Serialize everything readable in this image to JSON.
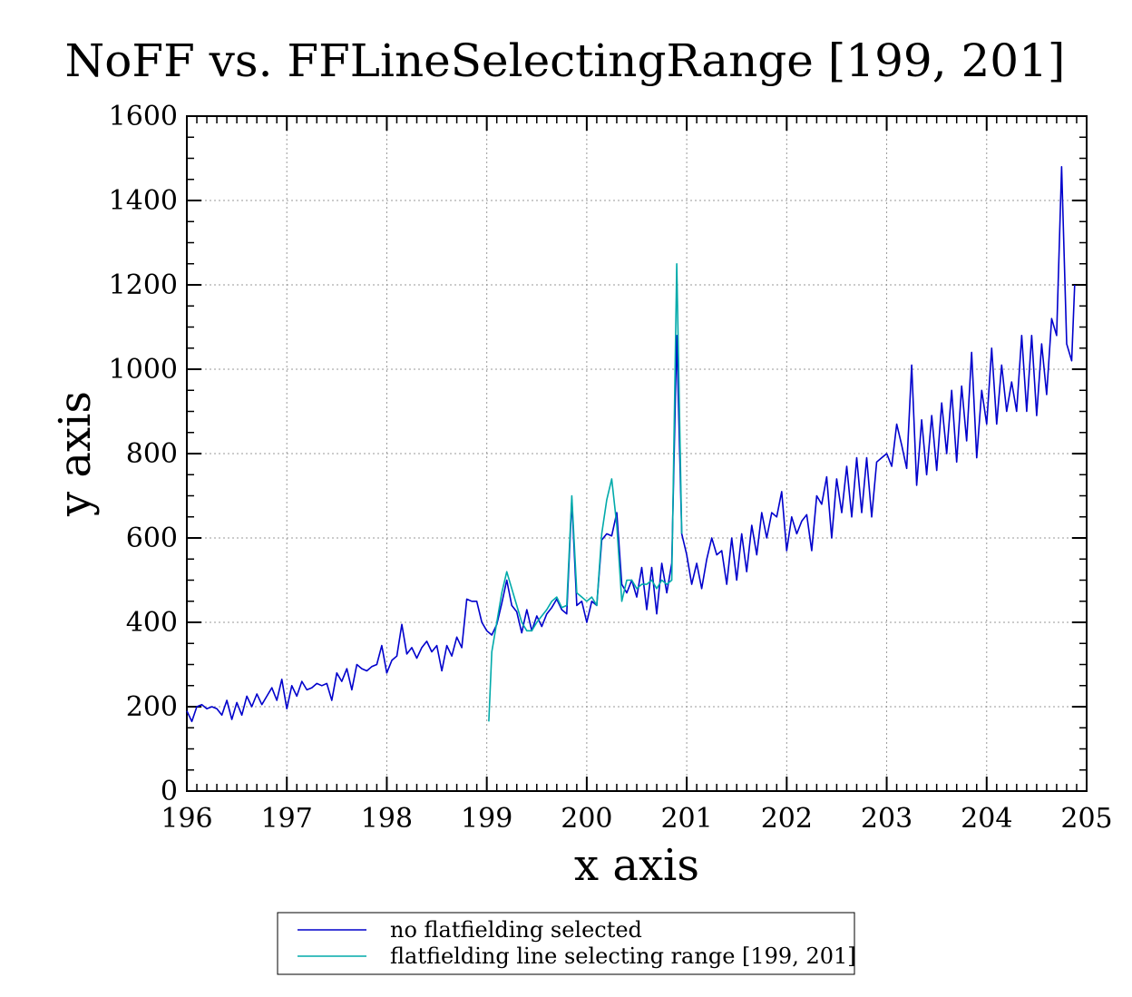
{
  "chart_data": {
    "type": "line",
    "title": "NoFF vs. FFLineSelectingRange [199, 201]",
    "xlabel": "x axis",
    "ylabel": "y axis",
    "xlim": [
      196,
      205
    ],
    "ylim": [
      0,
      1600
    ],
    "xticks": [
      196,
      197,
      198,
      199,
      200,
      201,
      202,
      203,
      204,
      205
    ],
    "yticks": [
      0,
      200,
      400,
      600,
      800,
      1000,
      1200,
      1400,
      1600
    ],
    "grid": true,
    "legend_position": "bottom-center",
    "series": [
      {
        "name": "no flatfielding selected",
        "color": "#0000cc",
        "points": [
          [
            196.0,
            190
          ],
          [
            196.05,
            165
          ],
          [
            196.1,
            200
          ],
          [
            196.15,
            205
          ],
          [
            196.2,
            195
          ],
          [
            196.25,
            200
          ],
          [
            196.3,
            195
          ],
          [
            196.35,
            180
          ],
          [
            196.4,
            215
          ],
          [
            196.45,
            170
          ],
          [
            196.5,
            210
          ],
          [
            196.55,
            180
          ],
          [
            196.6,
            225
          ],
          [
            196.65,
            200
          ],
          [
            196.7,
            230
          ],
          [
            196.75,
            205
          ],
          [
            196.8,
            225
          ],
          [
            196.85,
            245
          ],
          [
            196.9,
            215
          ],
          [
            196.95,
            265
          ],
          [
            197.0,
            195
          ],
          [
            197.05,
            250
          ],
          [
            197.1,
            225
          ],
          [
            197.15,
            260
          ],
          [
            197.2,
            240
          ],
          [
            197.25,
            245
          ],
          [
            197.3,
            255
          ],
          [
            197.35,
            250
          ],
          [
            197.4,
            255
          ],
          [
            197.45,
            215
          ],
          [
            197.5,
            280
          ],
          [
            197.55,
            260
          ],
          [
            197.6,
            290
          ],
          [
            197.65,
            240
          ],
          [
            197.7,
            300
          ],
          [
            197.75,
            290
          ],
          [
            197.8,
            285
          ],
          [
            197.85,
            295
          ],
          [
            197.9,
            300
          ],
          [
            197.95,
            345
          ],
          [
            198.0,
            280
          ],
          [
            198.05,
            310
          ],
          [
            198.1,
            320
          ],
          [
            198.15,
            395
          ],
          [
            198.2,
            325
          ],
          [
            198.25,
            340
          ],
          [
            198.3,
            315
          ],
          [
            198.35,
            340
          ],
          [
            198.4,
            355
          ],
          [
            198.45,
            330
          ],
          [
            198.5,
            345
          ],
          [
            198.55,
            285
          ],
          [
            198.6,
            345
          ],
          [
            198.65,
            320
          ],
          [
            198.7,
            365
          ],
          [
            198.75,
            340
          ],
          [
            198.8,
            455
          ],
          [
            198.85,
            450
          ],
          [
            198.9,
            450
          ],
          [
            198.95,
            400
          ],
          [
            199.0,
            380
          ],
          [
            199.05,
            370
          ],
          [
            199.1,
            395
          ],
          [
            199.15,
            445
          ],
          [
            199.2,
            500
          ],
          [
            199.25,
            440
          ],
          [
            199.3,
            425
          ],
          [
            199.35,
            375
          ],
          [
            199.4,
            430
          ],
          [
            199.45,
            380
          ],
          [
            199.5,
            415
          ],
          [
            199.55,
            390
          ],
          [
            199.6,
            420
          ],
          [
            199.65,
            435
          ],
          [
            199.7,
            455
          ],
          [
            199.75,
            430
          ],
          [
            199.8,
            420
          ],
          [
            199.85,
            690
          ],
          [
            199.9,
            440
          ],
          [
            199.95,
            450
          ],
          [
            200.0,
            400
          ],
          [
            200.05,
            450
          ],
          [
            200.1,
            440
          ],
          [
            200.15,
            595
          ],
          [
            200.2,
            610
          ],
          [
            200.25,
            605
          ],
          [
            200.3,
            660
          ],
          [
            200.35,
            490
          ],
          [
            200.4,
            470
          ],
          [
            200.45,
            500
          ],
          [
            200.5,
            460
          ],
          [
            200.55,
            530
          ],
          [
            200.6,
            430
          ],
          [
            200.65,
            530
          ],
          [
            200.7,
            420
          ],
          [
            200.75,
            540
          ],
          [
            200.8,
            470
          ],
          [
            200.85,
            540
          ],
          [
            200.9,
            1080
          ],
          [
            200.95,
            610
          ],
          [
            201.0,
            560
          ],
          [
            201.05,
            490
          ],
          [
            201.1,
            540
          ],
          [
            201.15,
            480
          ],
          [
            201.2,
            550
          ],
          [
            201.25,
            600
          ],
          [
            201.3,
            560
          ],
          [
            201.35,
            570
          ],
          [
            201.4,
            490
          ],
          [
            201.45,
            600
          ],
          [
            201.5,
            500
          ],
          [
            201.55,
            610
          ],
          [
            201.6,
            520
          ],
          [
            201.65,
            630
          ],
          [
            201.7,
            560
          ],
          [
            201.75,
            660
          ],
          [
            201.8,
            600
          ],
          [
            201.85,
            660
          ],
          [
            201.9,
            650
          ],
          [
            201.95,
            710
          ],
          [
            202.0,
            570
          ],
          [
            202.05,
            650
          ],
          [
            202.1,
            610
          ],
          [
            202.15,
            640
          ],
          [
            202.2,
            655
          ],
          [
            202.25,
            570
          ],
          [
            202.3,
            700
          ],
          [
            202.35,
            680
          ],
          [
            202.4,
            745
          ],
          [
            202.45,
            600
          ],
          [
            202.5,
            740
          ],
          [
            202.55,
            660
          ],
          [
            202.6,
            770
          ],
          [
            202.65,
            650
          ],
          [
            202.7,
            790
          ],
          [
            202.75,
            660
          ],
          [
            202.8,
            790
          ],
          [
            202.85,
            650
          ],
          [
            202.9,
            780
          ],
          [
            202.95,
            790
          ],
          [
            203.0,
            800
          ],
          [
            203.05,
            770
          ],
          [
            203.1,
            870
          ],
          [
            203.15,
            820
          ],
          [
            203.2,
            765
          ],
          [
            203.25,
            1010
          ],
          [
            203.3,
            725
          ],
          [
            203.35,
            880
          ],
          [
            203.4,
            750
          ],
          [
            203.45,
            890
          ],
          [
            203.5,
            760
          ],
          [
            203.55,
            920
          ],
          [
            203.6,
            800
          ],
          [
            203.65,
            950
          ],
          [
            203.7,
            780
          ],
          [
            203.75,
            960
          ],
          [
            203.8,
            830
          ],
          [
            203.85,
            1040
          ],
          [
            203.9,
            790
          ],
          [
            203.95,
            950
          ],
          [
            204.0,
            870
          ],
          [
            204.05,
            1050
          ],
          [
            204.1,
            870
          ],
          [
            204.15,
            1010
          ],
          [
            204.2,
            900
          ],
          [
            204.25,
            970
          ],
          [
            204.3,
            900
          ],
          [
            204.35,
            1080
          ],
          [
            204.4,
            900
          ],
          [
            204.45,
            1080
          ],
          [
            204.5,
            890
          ],
          [
            204.55,
            1060
          ],
          [
            204.6,
            940
          ],
          [
            204.65,
            1120
          ],
          [
            204.7,
            1080
          ],
          [
            204.75,
            1480
          ],
          [
            204.8,
            1060
          ],
          [
            204.85,
            1020
          ],
          [
            204.88,
            1200
          ]
        ]
      },
      {
        "name": "flatfielding line selecting range [199, 201]",
        "color": "#00aaaa",
        "points": [
          [
            199.02,
            165
          ],
          [
            199.05,
            330
          ],
          [
            199.1,
            400
          ],
          [
            199.15,
            470
          ],
          [
            199.2,
            520
          ],
          [
            199.25,
            480
          ],
          [
            199.3,
            440
          ],
          [
            199.35,
            400
          ],
          [
            199.4,
            380
          ],
          [
            199.45,
            380
          ],
          [
            199.5,
            400
          ],
          [
            199.55,
            415
          ],
          [
            199.6,
            430
          ],
          [
            199.65,
            450
          ],
          [
            199.7,
            460
          ],
          [
            199.75,
            435
          ],
          [
            199.8,
            440
          ],
          [
            199.85,
            700
          ],
          [
            199.9,
            470
          ],
          [
            199.95,
            460
          ],
          [
            200.0,
            450
          ],
          [
            200.05,
            460
          ],
          [
            200.1,
            440
          ],
          [
            200.15,
            610
          ],
          [
            200.2,
            690
          ],
          [
            200.25,
            740
          ],
          [
            200.3,
            630
          ],
          [
            200.35,
            450
          ],
          [
            200.4,
            500
          ],
          [
            200.45,
            500
          ],
          [
            200.5,
            480
          ],
          [
            200.55,
            490
          ],
          [
            200.6,
            490
          ],
          [
            200.65,
            500
          ],
          [
            200.7,
            480
          ],
          [
            200.75,
            500
          ],
          [
            200.8,
            490
          ],
          [
            200.85,
            500
          ],
          [
            200.9,
            1250
          ],
          [
            200.95,
            610
          ]
        ]
      }
    ]
  }
}
